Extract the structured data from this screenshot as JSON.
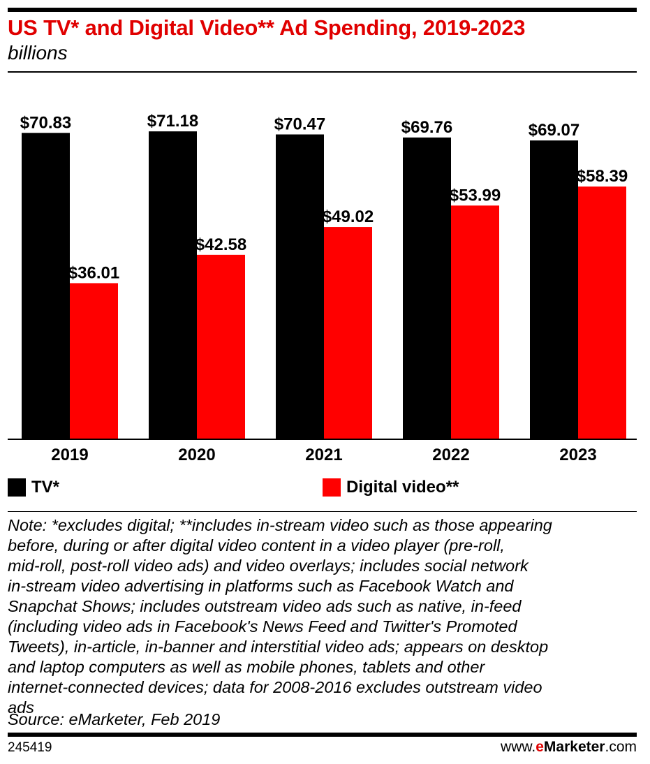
{
  "header": {
    "title": "US TV* and Digital Video** Ad Spending, 2019-2023",
    "subtitle": "billions"
  },
  "chart_data": {
    "type": "bar",
    "categories": [
      "2019",
      "2020",
      "2021",
      "2022",
      "2023"
    ],
    "series": [
      {
        "name": "TV*",
        "color": "#000000",
        "values": [
          70.83,
          71.18,
          70.47,
          69.76,
          69.07
        ],
        "labels": [
          "$70.83",
          "$71.18",
          "$70.47",
          "$69.76",
          "$69.07"
        ]
      },
      {
        "name": "Digital video**",
        "color": "#ff0000",
        "values": [
          36.01,
          42.58,
          49.02,
          53.99,
          58.39
        ],
        "labels": [
          "$36.01",
          "$42.58",
          "$49.02",
          "$53.99",
          "$58.39"
        ]
      }
    ],
    "title": "US TV* and Digital Video** Ad Spending, 2019-2023",
    "ylabel": "billions",
    "ylim": [
      0,
      80
    ],
    "grid": false,
    "legend": "bottom"
  },
  "legend": {
    "tv_label": "TV*",
    "digital_label": "Digital video**"
  },
  "footer": {
    "note": "Note: *excludes digital; **includes in-stream video such as those appearing\nbefore, during or after digital video content in a video player (pre-roll,\nmid-roll, post-roll video ads) and video overlays; includes social network\nin-stream video advertising in platforms such as Facebook Watch and\nSnapchat Shows; includes outstream video ads such as native, in-feed\n(including video ads in Facebook's News Feed and Twitter's Promoted\nTweets), in-article, in-banner and interstitial video ads; appears on desktop\nand laptop computers as well as mobile phones, tablets and other\ninternet-connected devices; data for 2008-2016 excludes outstream video\nads",
    "source": "Source: eMarketer, Feb 2019",
    "chart_id": "245419",
    "brand_prefix": "www.",
    "brand_e": "e",
    "brand_name": "Marketer",
    "brand_suffix": ".com"
  }
}
